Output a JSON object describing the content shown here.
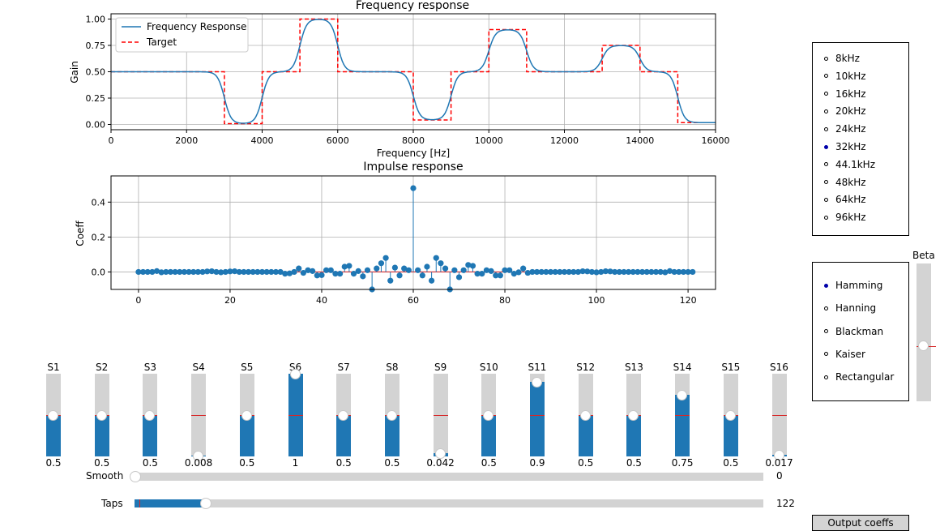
{
  "freq_plot": {
    "title": "Frequency response",
    "xlabel": "Frequency [Hz]",
    "ylabel": "Gain",
    "xticks": [
      "0",
      "2000",
      "4000",
      "6000",
      "8000",
      "10000",
      "12000",
      "14000",
      "16000"
    ],
    "yticks": [
      "0.00",
      "0.25",
      "0.50",
      "0.75",
      "1.00"
    ],
    "legend": [
      "Frequency Response",
      "Target"
    ],
    "colors": {
      "response": "#1f77b4",
      "target": "#ff0000"
    }
  },
  "impulse_plot": {
    "title": "Impulse response",
    "ylabel": "Coeff",
    "xticks": [
      "0",
      "20",
      "40",
      "60",
      "80",
      "100",
      "120"
    ],
    "yticks": [
      "0.0",
      "0.2",
      "0.4"
    ],
    "colors": {
      "stem": "#1f77b4",
      "baseline": "#d62728"
    }
  },
  "chart_data": [
    {
      "type": "line",
      "title": "Frequency response",
      "xlabel": "Frequency [Hz]",
      "ylabel": "Gain",
      "xlim": [
        0,
        16000
      ],
      "ylim": [
        -0.05,
        1.05
      ],
      "grid": true,
      "legend_position": "top-left",
      "series": [
        {
          "name": "Target",
          "style": "dashed-step",
          "x": [
            0,
            3000,
            3000,
            4000,
            4000,
            5000,
            5000,
            6000,
            6000,
            8000,
            8000,
            9000,
            9000,
            10000,
            10000,
            11000,
            11000,
            13000,
            13000,
            14000,
            14000,
            15000,
            15000,
            16000
          ],
          "y": [
            0.5,
            0.5,
            0.008,
            0.008,
            0.5,
            0.5,
            1,
            1,
            0.5,
            0.5,
            0.042,
            0.042,
            0.5,
            0.5,
            0.9,
            0.9,
            0.5,
            0.5,
            0.75,
            0.75,
            0.5,
            0.5,
            0.017,
            0.017
          ]
        },
        {
          "name": "Frequency Response",
          "style": "smooth",
          "band_edges": [
            0,
            1000,
            2000,
            3000,
            4000,
            5000,
            6000,
            7000,
            8000,
            9000,
            10000,
            11000,
            12000,
            13000,
            14000,
            15000,
            16000
          ],
          "band_gains": [
            0.5,
            0.5,
            0.5,
            0.008,
            0.5,
            1,
            0.5,
            0.5,
            0.042,
            0.5,
            0.9,
            0.5,
            0.5,
            0.75,
            0.5,
            0.017
          ]
        }
      ]
    },
    {
      "type": "stem",
      "title": "Impulse response",
      "ylabel": "Coeff",
      "xlim": [
        -6,
        126
      ],
      "ylim": [
        -0.1,
        0.55
      ],
      "grid": true,
      "x_start": 0,
      "values": [
        0,
        0,
        0,
        0,
        0.005,
        -0.002,
        0,
        0,
        0,
        0,
        0,
        0,
        0,
        0,
        0,
        0.003,
        0.004,
        0,
        -0.002,
        0,
        0.003,
        0.004,
        0,
        0,
        0,
        0,
        0,
        0,
        0,
        0,
        0,
        0,
        -0.01,
        -0.008,
        0,
        0.02,
        -0.005,
        0.01,
        0.005,
        -0.02,
        -0.018,
        0.01,
        0.01,
        -0.01,
        -0.01,
        0.03,
        0.035,
        -0.01,
        0.005,
        -0.025,
        0.01,
        -0.1,
        0.02,
        0.05,
        0.08,
        -0.05,
        0.025,
        -0.02,
        0.02,
        0.01,
        0.48,
        0.01,
        -0.02,
        0.03,
        -0.05,
        0.08,
        0.05,
        0.02,
        -0.1,
        0.01,
        -0.03,
        0.01,
        0.04,
        0.035,
        -0.01,
        -0.01,
        0.01,
        0.005,
        -0.02,
        -0.02,
        0.01,
        0.01,
        -0.01,
        -0.002,
        0.02,
        -0.005,
        0,
        0,
        0,
        0,
        0,
        0,
        0,
        0,
        0,
        0,
        0,
        0.004,
        0.003,
        0,
        -0.002,
        0,
        0.004,
        0.003,
        0,
        0,
        0,
        0,
        0,
        0,
        0,
        0,
        0,
        0,
        0,
        -0.002,
        0.005,
        0,
        0,
        0,
        0,
        0
      ]
    }
  ],
  "sample_rates": {
    "options": [
      "8kHz",
      "10kHz",
      "16kHz",
      "20kHz",
      "24kHz",
      "32kHz",
      "44.1kHz",
      "48kHz",
      "64kHz",
      "96kHz"
    ],
    "selected": "32kHz"
  },
  "windows": {
    "options": [
      "Hamming",
      "Hanning",
      "Blackman",
      "Kaiser",
      "Rectangular"
    ],
    "selected": "Hamming"
  },
  "beta": {
    "label": "Beta",
    "value": 0.5
  },
  "band_sliders": [
    {
      "label": "S1",
      "value_text": "0.5",
      "value": 0.5
    },
    {
      "label": "S2",
      "value_text": "0.5",
      "value": 0.5
    },
    {
      "label": "S3",
      "value_text": "0.5",
      "value": 0.5
    },
    {
      "label": "S4",
      "value_text": "0.008",
      "value": 0.008
    },
    {
      "label": "S5",
      "value_text": "0.5",
      "value": 0.5
    },
    {
      "label": "S6",
      "value_text": "1",
      "value": 1
    },
    {
      "label": "S7",
      "value_text": "0.5",
      "value": 0.5
    },
    {
      "label": "S8",
      "value_text": "0.5",
      "value": 0.5
    },
    {
      "label": "S9",
      "value_text": "0.042",
      "value": 0.042
    },
    {
      "label": "S10",
      "value_text": "0.5",
      "value": 0.5
    },
    {
      "label": "S11",
      "value_text": "0.9",
      "value": 0.9
    },
    {
      "label": "S12",
      "value_text": "0.5",
      "value": 0.5
    },
    {
      "label": "S13",
      "value_text": "0.5",
      "value": 0.5
    },
    {
      "label": "S14",
      "value_text": "0.75",
      "value": 0.75
    },
    {
      "label": "S15",
      "value_text": "0.5",
      "value": 0.5
    },
    {
      "label": "S16",
      "value_text": "0.017",
      "value": 0.017
    }
  ],
  "smooth": {
    "label": "Smooth",
    "value_text": "0",
    "fraction": 0
  },
  "taps": {
    "label": "Taps",
    "value_text": "122",
    "fraction": 0.11
  },
  "output_button": {
    "label": "Output coeffs"
  }
}
